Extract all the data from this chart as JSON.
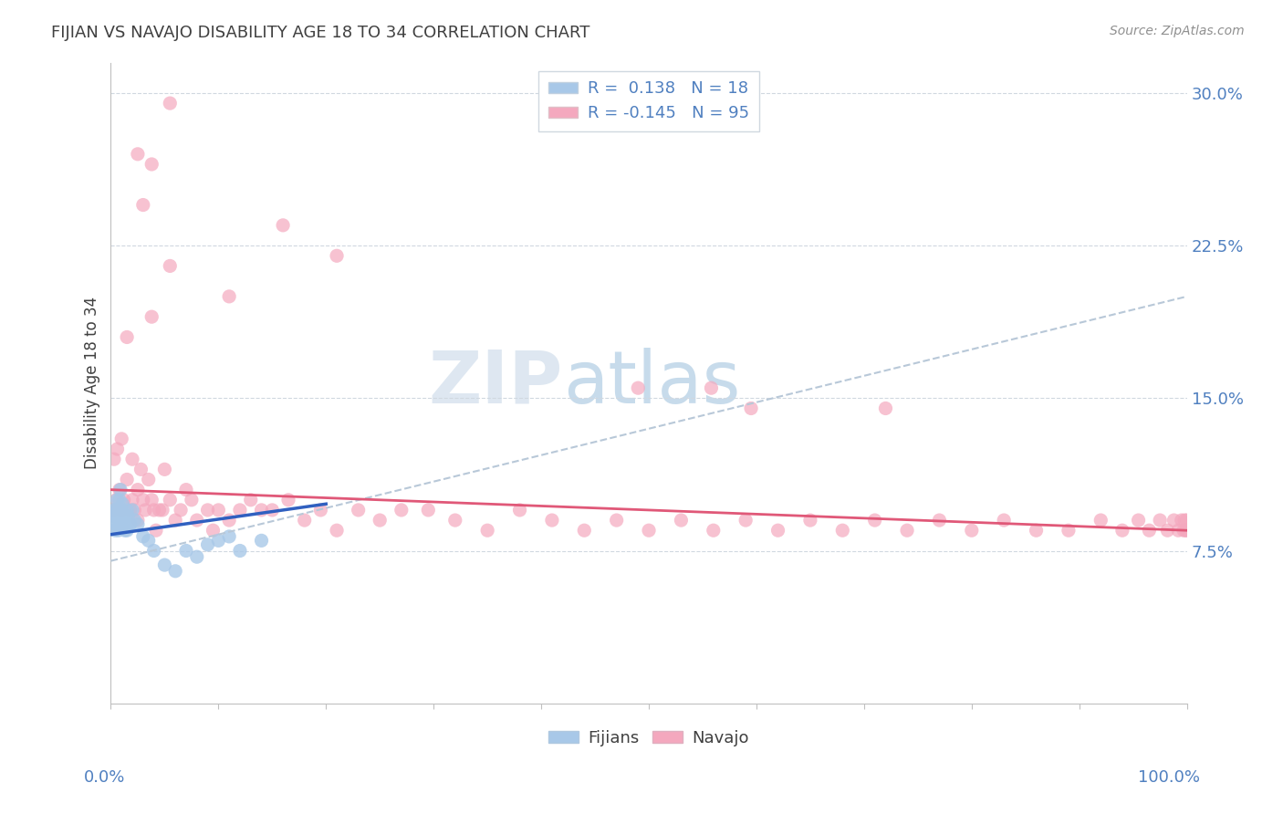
{
  "title": "FIJIAN VS NAVAJO DISABILITY AGE 18 TO 34 CORRELATION CHART",
  "source": "Source: ZipAtlas.com",
  "ylabel": "Disability Age 18 to 34",
  "ytick_vals": [
    0.0,
    0.075,
    0.15,
    0.225,
    0.3
  ],
  "ytick_labels": [
    "",
    "7.5%",
    "15.0%",
    "22.5%",
    "30.0%"
  ],
  "xlim": [
    0.0,
    1.0
  ],
  "ylim": [
    0.0,
    0.315
  ],
  "fijian_color": "#a8c8e8",
  "navajo_color": "#f4a8be",
  "fijian_line_color": "#3060c0",
  "navajo_line_color": "#e05878",
  "dash_line_color": "#b8c8d8",
  "title_color": "#404040",
  "tick_label_color": "#5080c0",
  "ylabel_color": "#404040",
  "source_color": "#909090",
  "watermark_color": "#dce8f0",
  "fijian_x": [
    0.002,
    0.003,
    0.004,
    0.004,
    0.005,
    0.005,
    0.006,
    0.006,
    0.007,
    0.007,
    0.008,
    0.008,
    0.009,
    0.01,
    0.01,
    0.011,
    0.012,
    0.013,
    0.014,
    0.015,
    0.015,
    0.016,
    0.018,
    0.02,
    0.022,
    0.025,
    0.03,
    0.035,
    0.04,
    0.05,
    0.06,
    0.07,
    0.08,
    0.09,
    0.1,
    0.11,
    0.12,
    0.14
  ],
  "fijian_y": [
    0.09,
    0.095,
    0.085,
    0.092,
    0.088,
    0.095,
    0.092,
    0.1,
    0.085,
    0.095,
    0.088,
    0.1,
    0.105,
    0.095,
    0.09,
    0.098,
    0.092,
    0.085,
    0.088,
    0.095,
    0.085,
    0.092,
    0.088,
    0.095,
    0.09,
    0.088,
    0.082,
    0.08,
    0.075,
    0.068,
    0.065,
    0.075,
    0.072,
    0.078,
    0.08,
    0.082,
    0.075,
    0.08
  ],
  "navajo_x": [
    0.002,
    0.003,
    0.005,
    0.006,
    0.008,
    0.01,
    0.01,
    0.012,
    0.015,
    0.015,
    0.018,
    0.02,
    0.02,
    0.022,
    0.025,
    0.025,
    0.028,
    0.03,
    0.032,
    0.035,
    0.038,
    0.04,
    0.042,
    0.045,
    0.048,
    0.05,
    0.055,
    0.06,
    0.065,
    0.07,
    0.075,
    0.08,
    0.09,
    0.095,
    0.1,
    0.11,
    0.12,
    0.13,
    0.14,
    0.15,
    0.165,
    0.18,
    0.195,
    0.21,
    0.23,
    0.25,
    0.27,
    0.295,
    0.32,
    0.35,
    0.38,
    0.41,
    0.44,
    0.47,
    0.5,
    0.53,
    0.56,
    0.59,
    0.62,
    0.65,
    0.68,
    0.71,
    0.74,
    0.77,
    0.8,
    0.83,
    0.86,
    0.89,
    0.92,
    0.94,
    0.955,
    0.965,
    0.975,
    0.982,
    0.988,
    0.992,
    0.995,
    0.997,
    0.998,
    0.999,
    1.0,
    1.0,
    0.038,
    0.055,
    0.025,
    0.03,
    0.11,
    0.16,
    0.21,
    0.055,
    0.038,
    0.558,
    0.595,
    0.72,
    0.49
  ],
  "navajo_y": [
    0.095,
    0.12,
    0.1,
    0.125,
    0.105,
    0.095,
    0.13,
    0.1,
    0.11,
    0.18,
    0.095,
    0.1,
    0.12,
    0.095,
    0.105,
    0.09,
    0.115,
    0.1,
    0.095,
    0.11,
    0.1,
    0.095,
    0.085,
    0.095,
    0.095,
    0.115,
    0.1,
    0.09,
    0.095,
    0.105,
    0.1,
    0.09,
    0.095,
    0.085,
    0.095,
    0.09,
    0.095,
    0.1,
    0.095,
    0.095,
    0.1,
    0.09,
    0.095,
    0.085,
    0.095,
    0.09,
    0.095,
    0.095,
    0.09,
    0.085,
    0.095,
    0.09,
    0.085,
    0.09,
    0.085,
    0.09,
    0.085,
    0.09,
    0.085,
    0.09,
    0.085,
    0.09,
    0.085,
    0.09,
    0.085,
    0.09,
    0.085,
    0.085,
    0.09,
    0.085,
    0.09,
    0.085,
    0.09,
    0.085,
    0.09,
    0.085,
    0.09,
    0.085,
    0.09,
    0.085,
    0.09,
    0.085,
    0.19,
    0.215,
    0.27,
    0.245,
    0.2,
    0.235,
    0.22,
    0.295,
    0.265,
    0.155,
    0.145,
    0.145,
    0.155
  ]
}
